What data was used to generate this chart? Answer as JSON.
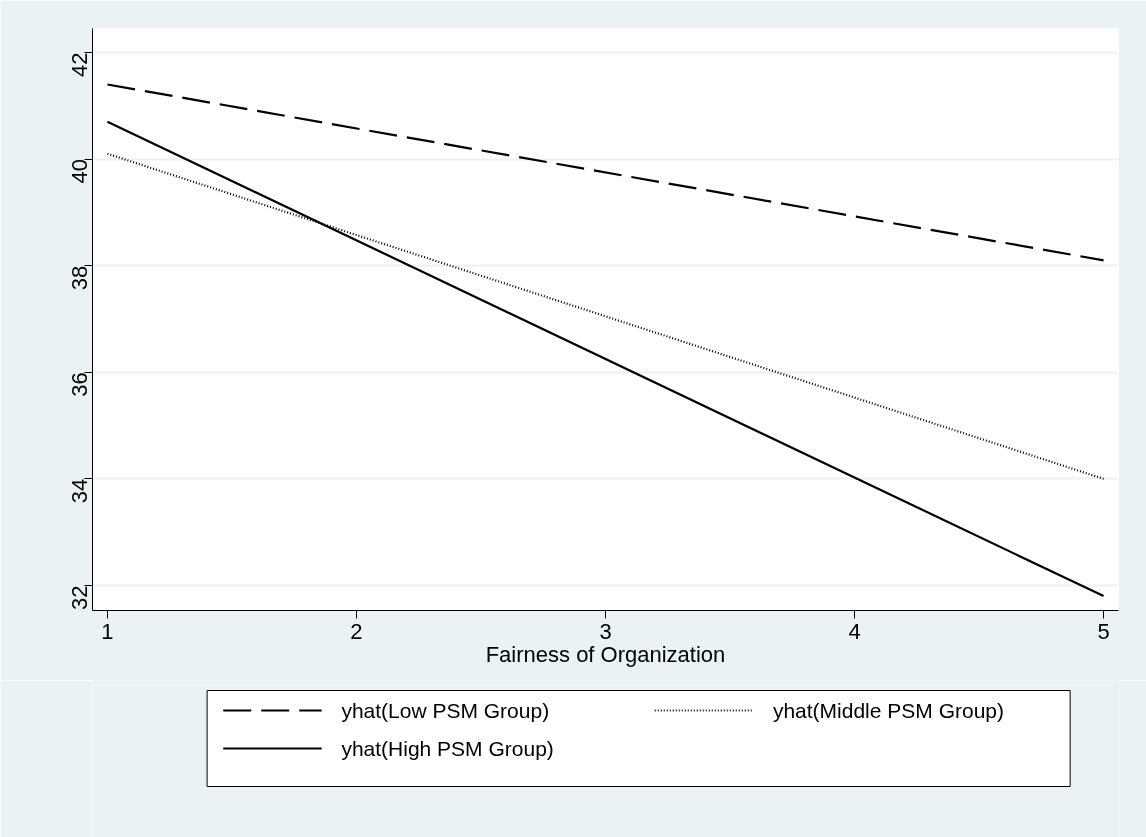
{
  "chart_data": {
    "type": "line",
    "xlabel": "Fairness of Organization",
    "x": [
      1,
      5
    ],
    "series": [
      {
        "name": "yhat(Low PSM Group)",
        "color": "#000000",
        "line_style": "dashed",
        "values": [
          41.4,
          38.1
        ]
      },
      {
        "name": "yhat(Middle PSM Group)",
        "color": "#000000",
        "line_style": "dotted",
        "values": [
          40.1,
          34.0
        ]
      },
      {
        "name": "yhat(High PSM Group)",
        "color": "#000000",
        "line_style": "solid",
        "values": [
          40.7,
          31.8
        ]
      }
    ],
    "xlim": [
      0.94,
      5.06
    ],
    "ylim": [
      31.53,
      42.45
    ],
    "xticks": [
      1,
      2,
      3,
      4,
      5
    ],
    "yticks": [
      32,
      34,
      36,
      38,
      40,
      42
    ],
    "grid": "y",
    "legend": "bottom",
    "marker": "none"
  }
}
